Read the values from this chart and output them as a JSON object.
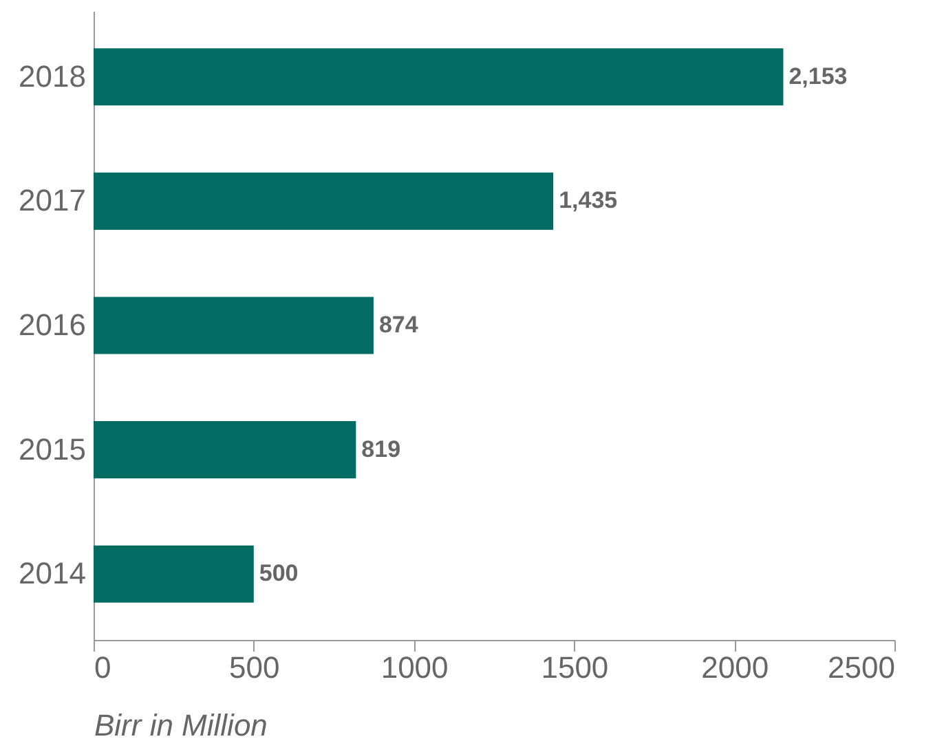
{
  "chart_data": {
    "type": "bar",
    "orientation": "horizontal",
    "xlabel": "Birr in Million",
    "categories": [
      "2018",
      "2017",
      "2016",
      "2015",
      "2014"
    ],
    "values": [
      2153,
      1435,
      874,
      819,
      500
    ],
    "color": "#036c62",
    "xlim": [
      0,
      2500
    ],
    "xticks": [
      0,
      500,
      1000,
      1500,
      2000,
      2500
    ],
    "grid": false,
    "value_labels": [
      "2,153",
      "1,435",
      "874",
      "819",
      "500"
    ]
  }
}
